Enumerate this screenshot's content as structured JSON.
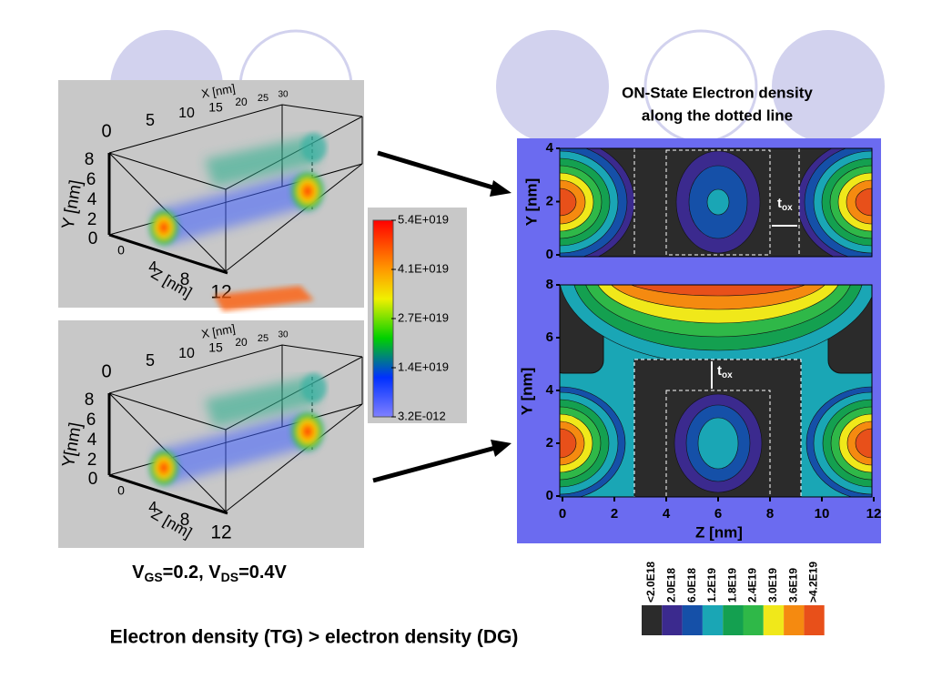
{
  "views_3d": [
    {
      "x_label": "X [nm]",
      "x_ticks": [
        0,
        5,
        10,
        15,
        20,
        25,
        30
      ],
      "y_label": "Y [nm]",
      "y_ticks": [
        0,
        2,
        4,
        6,
        8
      ],
      "z_label": "Z [nm]",
      "z_ticks": [
        0,
        4,
        8,
        12
      ]
    },
    {
      "x_label": "X [nm]",
      "x_ticks": [
        0,
        5,
        10,
        15,
        20,
        25,
        30
      ],
      "y_label": "Y[nm]",
      "y_ticks": [
        0,
        2,
        4,
        6,
        8
      ],
      "z_label": "Z [nm]",
      "z_ticks": [
        0,
        4,
        8,
        12
      ]
    }
  ],
  "colorbar": {
    "labels": [
      "5.4E+019",
      "4.1E+019",
      "2.7E+019",
      "1.4E+019",
      "3.2E-012"
    ]
  },
  "caption": [
    {
      "text": "V"
    },
    {
      "sub": "GS"
    },
    {
      "text": "=0.2, V"
    },
    {
      "sub": "DS"
    },
    {
      "text": "=0.4V"
    }
  ],
  "contour": {
    "title": [
      "ON-State Electron density",
      "along the dotted line"
    ],
    "x_label": "Z [nm]",
    "y_label": "Y [nm]",
    "x_ticks": [
      0,
      2,
      4,
      6,
      8,
      10,
      12
    ],
    "top_y_ticks": [
      0,
      2,
      4
    ],
    "bottom_y_ticks": [
      0,
      2,
      4,
      6,
      8
    ],
    "tox": {
      "text": "t",
      "sub": "ox"
    }
  },
  "legend": {
    "labels": [
      "<2.0E18",
      "2.0E18",
      "6.0E18",
      "1.2E19",
      "1.8E19",
      "2.4E19",
      "3.0E19",
      "3.6E19",
      ">4.2E19"
    ],
    "colors": [
      "#2b2b2b",
      "#3b2a8e",
      "#1550a8",
      "#1aa6b5",
      "#14a050",
      "#2fb848",
      "#f0e81a",
      "#f58a10",
      "#e8501a"
    ]
  },
  "footer": "Electron density (TG) > electron density (DG)"
}
